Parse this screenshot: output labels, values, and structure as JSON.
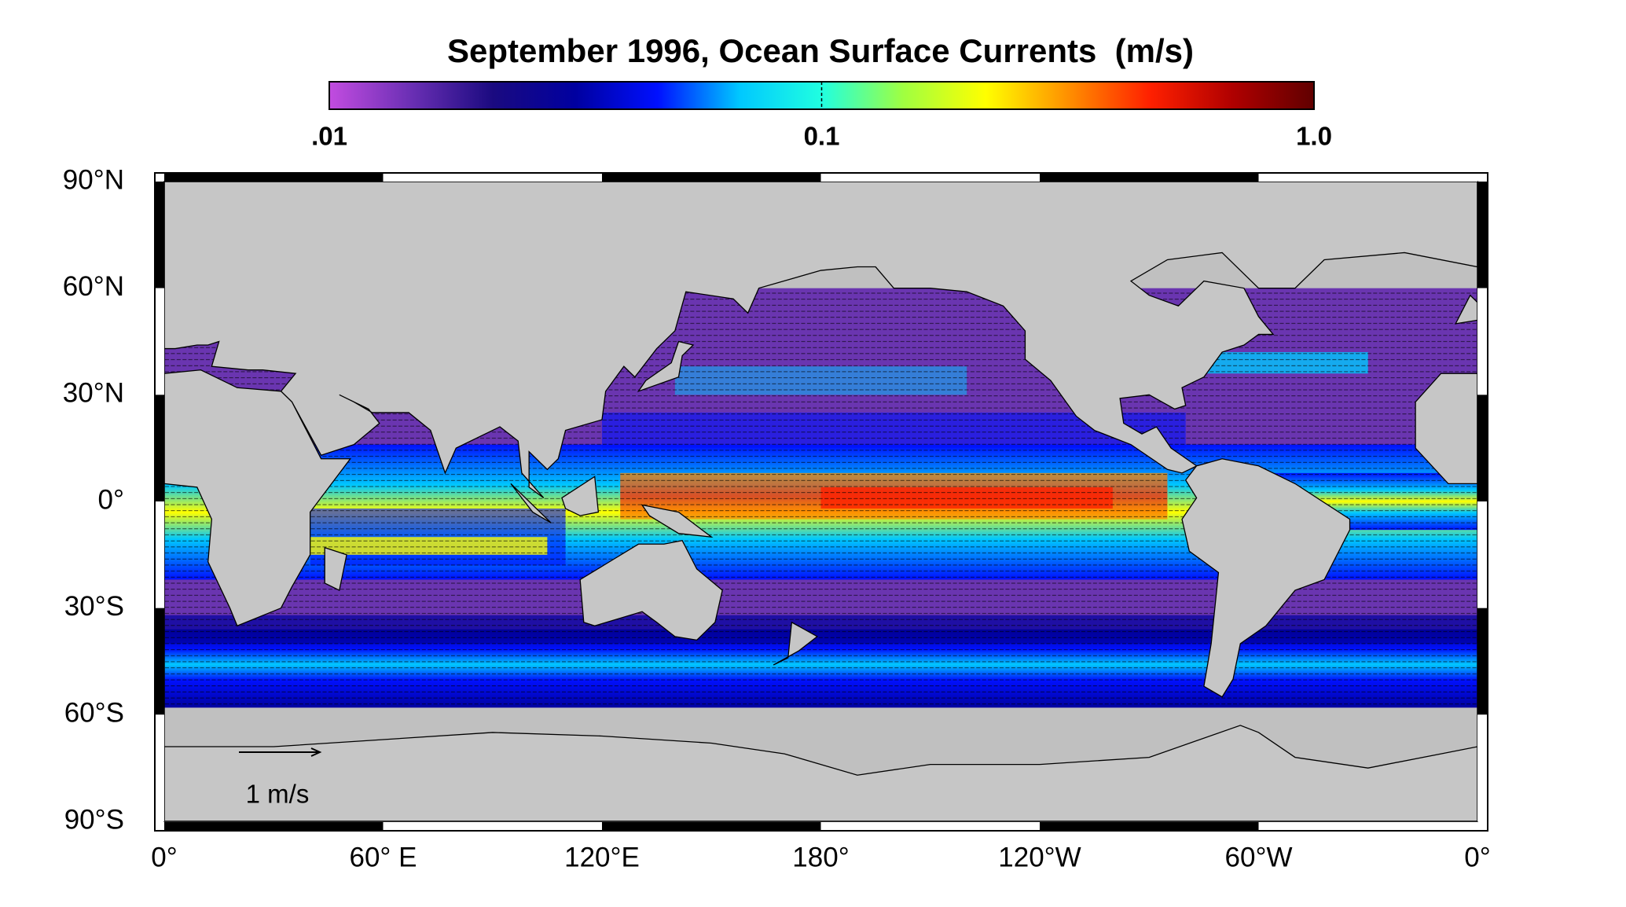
{
  "map": {
    "title": "September 1996, Ocean Surface Currents  (m/s)",
    "colorbar": {
      "scale": "log",
      "lim": [
        0.01,
        1
      ],
      "ticks": [
        {
          "value": 0.01,
          "label": ".01"
        },
        0.1,
        {
          "value": 1,
          "label": "1.0"
        }
      ],
      "colors": [
        "#c24ce0",
        "#6a2fb4",
        "#1a0a80",
        "#0000a0",
        "#0010ff",
        "#00c8ff",
        "#20ffe0",
        "#a0ff40",
        "#ffff00",
        "#ff9000",
        "#ff2000",
        "#b00000",
        "#600000"
      ]
    },
    "lon_ticks": [
      {
        "value": 0,
        "label": "0°"
      },
      {
        "value": 60,
        "label": "60° E"
      },
      {
        "value": 120,
        "label": "120°E"
      },
      {
        "value": 180,
        "label": "180°"
      },
      {
        "value": 240,
        "label": "120°W"
      },
      {
        "value": 300,
        "label": "60°W"
      },
      {
        "value": 360,
        "label": "0°"
      }
    ],
    "lat_ticks": [
      {
        "value": 90,
        "label": "90°N"
      },
      {
        "value": 60,
        "label": "60°N"
      },
      {
        "value": 30,
        "label": "30°N"
      },
      {
        "value": 0,
        "label": "0°"
      },
      {
        "value": -30,
        "label": "30°S"
      },
      {
        "value": -60,
        "label": "60°S"
      },
      {
        "value": -90,
        "label": "90°S"
      }
    ],
    "scale_arrow": {
      "label": "1 m/s"
    }
  }
}
